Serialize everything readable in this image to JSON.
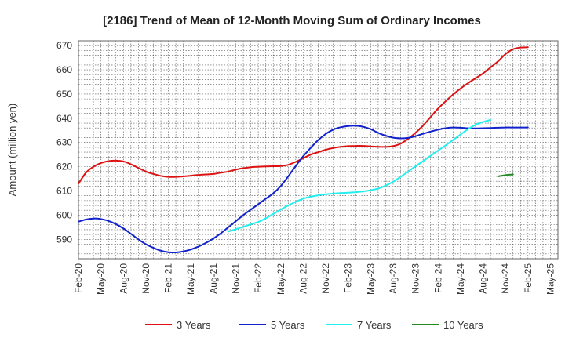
{
  "chart_data": {
    "type": "line",
    "title": "[2186]  Trend of Mean of 12-Month Moving Sum of Ordinary Incomes",
    "ylabel": "Amount (million yen)",
    "xlabel": "",
    "ylim": [
      582,
      672
    ],
    "yticks": [
      590,
      600,
      610,
      620,
      630,
      640,
      650,
      660,
      670
    ],
    "x_start": "2020-02",
    "x_months": 64,
    "xticks": [
      {
        "label": "Feb-20",
        "m": 0
      },
      {
        "label": "May-20",
        "m": 3
      },
      {
        "label": "Aug-20",
        "m": 6
      },
      {
        "label": "Nov-20",
        "m": 9
      },
      {
        "label": "Feb-21",
        "m": 12
      },
      {
        "label": "May-21",
        "m": 15
      },
      {
        "label": "Aug-21",
        "m": 18
      },
      {
        "label": "Nov-21",
        "m": 21
      },
      {
        "label": "Feb-22",
        "m": 24
      },
      {
        "label": "May-22",
        "m": 27
      },
      {
        "label": "Aug-22",
        "m": 30
      },
      {
        "label": "Nov-22",
        "m": 33
      },
      {
        "label": "Feb-23",
        "m": 36
      },
      {
        "label": "May-23",
        "m": 39
      },
      {
        "label": "Aug-23",
        "m": 42
      },
      {
        "label": "Nov-23",
        "m": 45
      },
      {
        "label": "Feb-24",
        "m": 48
      },
      {
        "label": "May-24",
        "m": 51
      },
      {
        "label": "Aug-24",
        "m": 54
      },
      {
        "label": "Nov-24",
        "m": 57
      },
      {
        "label": "Feb-25",
        "m": 60
      },
      {
        "label": "May-25",
        "m": 63
      }
    ],
    "grid": true,
    "legend_position": "bottom",
    "series": [
      {
        "name": "3 Years",
        "color": "#dd1111",
        "points": [
          [
            0,
            613
          ],
          [
            1,
            617.5
          ],
          [
            2,
            620
          ],
          [
            3,
            621.5
          ],
          [
            4,
            622.3
          ],
          [
            5,
            622.5
          ],
          [
            6,
            622.2
          ],
          [
            7,
            621
          ],
          [
            8,
            619.5
          ],
          [
            9,
            618
          ],
          [
            10,
            617
          ],
          [
            11,
            616.2
          ],
          [
            12,
            615.8
          ],
          [
            13,
            615.8
          ],
          [
            14,
            616
          ],
          [
            15,
            616.3
          ],
          [
            16,
            616.6
          ],
          [
            17,
            616.8
          ],
          [
            18,
            617
          ],
          [
            19,
            617.5
          ],
          [
            20,
            618
          ],
          [
            21,
            618.8
          ],
          [
            22,
            619.4
          ],
          [
            23,
            619.8
          ],
          [
            24,
            620
          ],
          [
            25,
            620.1
          ],
          [
            26,
            620.2
          ],
          [
            27,
            620.3
          ],
          [
            28,
            620.8
          ],
          [
            29,
            622
          ],
          [
            30,
            623.5
          ],
          [
            31,
            625
          ],
          [
            32,
            626
          ],
          [
            33,
            627
          ],
          [
            34,
            627.7
          ],
          [
            35,
            628.2
          ],
          [
            36,
            628.5
          ],
          [
            37,
            628.6
          ],
          [
            38,
            628.6
          ],
          [
            39,
            628.4
          ],
          [
            40,
            628.2
          ],
          [
            41,
            628.2
          ],
          [
            42,
            628.5
          ],
          [
            43,
            629.5
          ],
          [
            44,
            631.5
          ],
          [
            45,
            634
          ],
          [
            46,
            637
          ],
          [
            47,
            640.5
          ],
          [
            48,
            644
          ],
          [
            49,
            647
          ],
          [
            50,
            649.8
          ],
          [
            51,
            652.3
          ],
          [
            52,
            654.5
          ],
          [
            53,
            656.5
          ],
          [
            54,
            658.5
          ],
          [
            55,
            661
          ],
          [
            56,
            663.5
          ],
          [
            57,
            666.5
          ],
          [
            58,
            668.5
          ],
          [
            59,
            669.2
          ],
          [
            60,
            669.3
          ]
        ]
      },
      {
        "name": "5 Years",
        "color": "#1122cc",
        "points": [
          [
            0,
            597.3
          ],
          [
            1,
            598.2
          ],
          [
            2,
            598.6
          ],
          [
            3,
            598.4
          ],
          [
            4,
            597.6
          ],
          [
            5,
            596.3
          ],
          [
            6,
            594.5
          ],
          [
            7,
            592.3
          ],
          [
            8,
            590
          ],
          [
            9,
            588
          ],
          [
            10,
            586.5
          ],
          [
            11,
            585.3
          ],
          [
            12,
            584.7
          ],
          [
            13,
            584.6
          ],
          [
            14,
            585
          ],
          [
            15,
            585.8
          ],
          [
            16,
            587
          ],
          [
            17,
            588.5
          ],
          [
            18,
            590.3
          ],
          [
            19,
            592.5
          ],
          [
            20,
            595
          ],
          [
            21,
            597.5
          ],
          [
            22,
            600
          ],
          [
            23,
            602.3
          ],
          [
            24,
            604.5
          ],
          [
            25,
            606.8
          ],
          [
            26,
            609
          ],
          [
            27,
            612
          ],
          [
            28,
            616
          ],
          [
            29,
            620.3
          ],
          [
            30,
            624.3
          ],
          [
            31,
            627.8
          ],
          [
            32,
            631
          ],
          [
            33,
            633.5
          ],
          [
            34,
            635.3
          ],
          [
            35,
            636.3
          ],
          [
            36,
            636.8
          ],
          [
            37,
            636.9
          ],
          [
            38,
            636.5
          ],
          [
            39,
            635.5
          ],
          [
            40,
            634
          ],
          [
            41,
            632.8
          ],
          [
            42,
            632
          ],
          [
            43,
            631.7
          ],
          [
            44,
            631.9
          ],
          [
            45,
            632.6
          ],
          [
            46,
            633.6
          ],
          [
            47,
            634.5
          ],
          [
            48,
            635.3
          ],
          [
            49,
            635.9
          ],
          [
            50,
            636.2
          ],
          [
            51,
            636.1
          ],
          [
            52,
            635.9
          ],
          [
            53,
            635.8
          ],
          [
            54,
            635.9
          ],
          [
            55,
            636
          ],
          [
            56,
            636.1
          ],
          [
            57,
            636.2
          ],
          [
            58,
            636.2
          ],
          [
            59,
            636.2
          ],
          [
            60,
            636.2
          ]
        ]
      },
      {
        "name": "7 Years",
        "color": "#22eeee",
        "points": [
          [
            20,
            593.2
          ],
          [
            21,
            594.2
          ],
          [
            22,
            595.2
          ],
          [
            23,
            596.2
          ],
          [
            24,
            597.2
          ],
          [
            25,
            598.7
          ],
          [
            26,
            600.5
          ],
          [
            27,
            602.3
          ],
          [
            28,
            604
          ],
          [
            29,
            605.5
          ],
          [
            30,
            606.8
          ],
          [
            31,
            607.6
          ],
          [
            32,
            608.2
          ],
          [
            33,
            608.6
          ],
          [
            34,
            608.9
          ],
          [
            35,
            609.1
          ],
          [
            36,
            609.3
          ],
          [
            37,
            609.5
          ],
          [
            38,
            609.8
          ],
          [
            39,
            610.3
          ],
          [
            40,
            611
          ],
          [
            41,
            612.2
          ],
          [
            42,
            613.8
          ],
          [
            43,
            615.8
          ],
          [
            44,
            618
          ],
          [
            45,
            620.2
          ],
          [
            46,
            622.3
          ],
          [
            47,
            624.5
          ],
          [
            48,
            626.7
          ],
          [
            49,
            628.8
          ],
          [
            50,
            631
          ],
          [
            51,
            633.3
          ],
          [
            52,
            635.5
          ],
          [
            53,
            637.3
          ],
          [
            54,
            638.5
          ],
          [
            55,
            639.3
          ]
        ]
      },
      {
        "name": "10 Years",
        "color": "#228822",
        "points": [
          [
            56,
            616
          ],
          [
            57,
            616.5
          ],
          [
            58,
            616.8
          ]
        ]
      }
    ]
  }
}
